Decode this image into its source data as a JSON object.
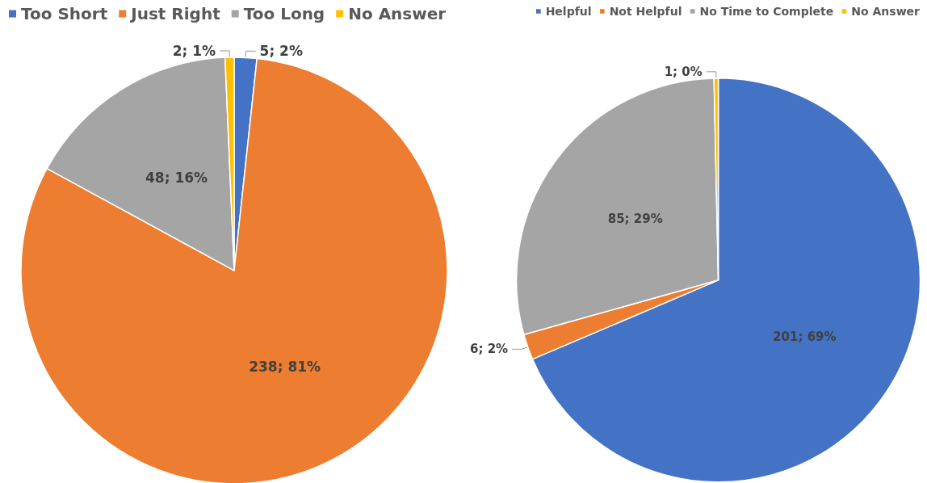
{
  "chart_data": [
    {
      "type": "pie",
      "categories": [
        "Too Short",
        "Just Right",
        "Too Long",
        "No Answer"
      ],
      "values": [
        5,
        238,
        48,
        2
      ],
      "colors": [
        "#4472c4",
        "#ed7d31",
        "#a5a5a5",
        "#ffc000"
      ],
      "value_labels": [
        "5; 2%",
        "238; 81%",
        "48; 16%",
        "2; 1%"
      ],
      "legend": "top left"
    },
    {
      "type": "pie",
      "categories": [
        "Helpful",
        "Not Helpful",
        "No Time to Complete",
        "No Answer"
      ],
      "values": [
        201,
        6,
        85,
        1
      ],
      "colors": [
        "#4472c4",
        "#ed7d31",
        "#a5a5a5",
        "#ffc000"
      ],
      "value_labels": [
        "201; 69%",
        "6; 2%",
        "85; 29%",
        "1; 0%"
      ],
      "legend": "top right"
    }
  ]
}
